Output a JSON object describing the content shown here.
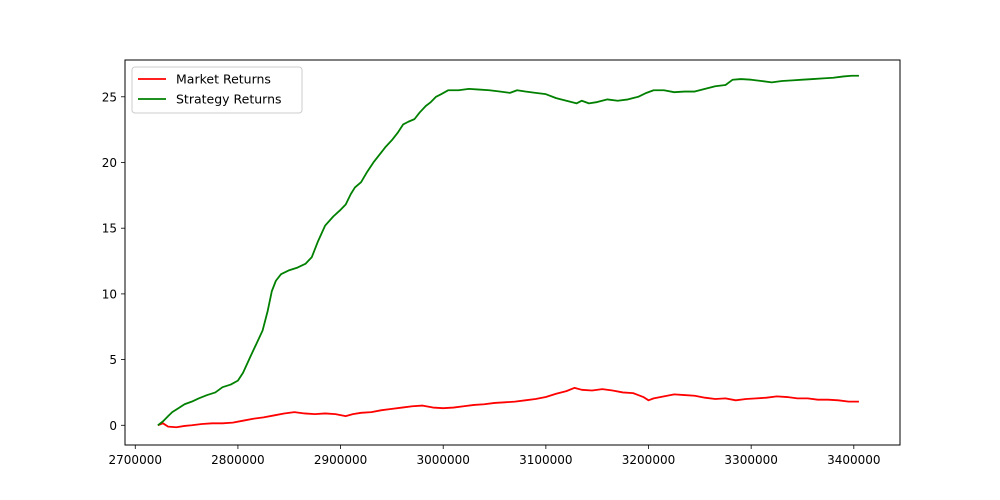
{
  "chart_data": {
    "type": "line",
    "title": "",
    "xlabel": "",
    "ylabel": "",
    "xlim": [
      2690000,
      3445000
    ],
    "ylim": [
      -1.5,
      27.8
    ],
    "xticks": [
      2700000,
      2800000,
      2900000,
      3000000,
      3100000,
      3200000,
      3300000,
      3400000
    ],
    "xtick_labels": [
      "2700000",
      "2800000",
      "2900000",
      "3000000",
      "3100000",
      "3200000",
      "3300000",
      "3400000"
    ],
    "yticks": [
      0,
      5,
      10,
      15,
      20,
      25
    ],
    "ytick_labels": [
      "0",
      "5",
      "10",
      "15",
      "20",
      "25"
    ],
    "grid": false,
    "legend": {
      "position": "upper-left",
      "entries": [
        "Market Returns",
        "Strategy Returns"
      ]
    },
    "series": [
      {
        "name": "Market Returns",
        "color": "#ff0000",
        "points": [
          [
            2722000,
            0.0
          ],
          [
            2727000,
            0.15
          ],
          [
            2732000,
            -0.1
          ],
          [
            2740000,
            -0.15
          ],
          [
            2748000,
            -0.05
          ],
          [
            2755000,
            0.0
          ],
          [
            2765000,
            0.1
          ],
          [
            2775000,
            0.15
          ],
          [
            2785000,
            0.15
          ],
          [
            2795000,
            0.2
          ],
          [
            2805000,
            0.35
          ],
          [
            2815000,
            0.5
          ],
          [
            2825000,
            0.6
          ],
          [
            2835000,
            0.75
          ],
          [
            2845000,
            0.9
          ],
          [
            2855000,
            1.0
          ],
          [
            2865000,
            0.9
          ],
          [
            2875000,
            0.85
          ],
          [
            2885000,
            0.9
          ],
          [
            2895000,
            0.85
          ],
          [
            2905000,
            0.7
          ],
          [
            2912000,
            0.85
          ],
          [
            2920000,
            0.95
          ],
          [
            2930000,
            1.0
          ],
          [
            2940000,
            1.15
          ],
          [
            2950000,
            1.25
          ],
          [
            2960000,
            1.35
          ],
          [
            2970000,
            1.45
          ],
          [
            2980000,
            1.5
          ],
          [
            2990000,
            1.35
          ],
          [
            3000000,
            1.3
          ],
          [
            3010000,
            1.35
          ],
          [
            3020000,
            1.45
          ],
          [
            3030000,
            1.55
          ],
          [
            3040000,
            1.6
          ],
          [
            3050000,
            1.7
          ],
          [
            3060000,
            1.75
          ],
          [
            3070000,
            1.8
          ],
          [
            3080000,
            1.9
          ],
          [
            3090000,
            2.0
          ],
          [
            3100000,
            2.15
          ],
          [
            3110000,
            2.4
          ],
          [
            3120000,
            2.6
          ],
          [
            3128000,
            2.85
          ],
          [
            3135000,
            2.7
          ],
          [
            3145000,
            2.65
          ],
          [
            3155000,
            2.75
          ],
          [
            3165000,
            2.65
          ],
          [
            3175000,
            2.5
          ],
          [
            3185000,
            2.45
          ],
          [
            3195000,
            2.15
          ],
          [
            3200000,
            1.9
          ],
          [
            3205000,
            2.05
          ],
          [
            3215000,
            2.2
          ],
          [
            3225000,
            2.35
          ],
          [
            3235000,
            2.3
          ],
          [
            3245000,
            2.25
          ],
          [
            3255000,
            2.1
          ],
          [
            3265000,
            2.0
          ],
          [
            3275000,
            2.05
          ],
          [
            3285000,
            1.9
          ],
          [
            3295000,
            2.0
          ],
          [
            3305000,
            2.05
          ],
          [
            3315000,
            2.1
          ],
          [
            3325000,
            2.2
          ],
          [
            3335000,
            2.15
          ],
          [
            3345000,
            2.05
          ],
          [
            3355000,
            2.05
          ],
          [
            3365000,
            1.95
          ],
          [
            3375000,
            1.95
          ],
          [
            3385000,
            1.9
          ],
          [
            3395000,
            1.8
          ],
          [
            3405000,
            1.8
          ]
        ]
      },
      {
        "name": "Strategy Returns",
        "color": "#008000",
        "points": [
          [
            2722000,
            0.0
          ],
          [
            2727000,
            0.3
          ],
          [
            2732000,
            0.7
          ],
          [
            2736000,
            1.0
          ],
          [
            2742000,
            1.3
          ],
          [
            2748000,
            1.6
          ],
          [
            2755000,
            1.8
          ],
          [
            2762000,
            2.05
          ],
          [
            2770000,
            2.3
          ],
          [
            2778000,
            2.5
          ],
          [
            2785000,
            2.9
          ],
          [
            2793000,
            3.1
          ],
          [
            2800000,
            3.4
          ],
          [
            2805000,
            4.0
          ],
          [
            2812000,
            5.2
          ],
          [
            2818000,
            6.2
          ],
          [
            2824000,
            7.2
          ],
          [
            2829000,
            8.7
          ],
          [
            2833000,
            10.2
          ],
          [
            2837000,
            11.0
          ],
          [
            2842000,
            11.5
          ],
          [
            2850000,
            11.8
          ],
          [
            2858000,
            12.0
          ],
          [
            2866000,
            12.3
          ],
          [
            2872000,
            12.8
          ],
          [
            2878000,
            14.0
          ],
          [
            2885000,
            15.2
          ],
          [
            2893000,
            15.9
          ],
          [
            2900000,
            16.4
          ],
          [
            2905000,
            16.8
          ],
          [
            2910000,
            17.6
          ],
          [
            2914000,
            18.1
          ],
          [
            2920000,
            18.5
          ],
          [
            2926000,
            19.3
          ],
          [
            2932000,
            20.0
          ],
          [
            2938000,
            20.6
          ],
          [
            2944000,
            21.2
          ],
          [
            2950000,
            21.7
          ],
          [
            2956000,
            22.3
          ],
          [
            2961000,
            22.9
          ],
          [
            2966000,
            23.1
          ],
          [
            2972000,
            23.3
          ],
          [
            2977000,
            23.8
          ],
          [
            2983000,
            24.3
          ],
          [
            2988000,
            24.6
          ],
          [
            2993000,
            25.0
          ],
          [
            2998000,
            25.2
          ],
          [
            3005000,
            25.5
          ],
          [
            3015000,
            25.5
          ],
          [
            3025000,
            25.6
          ],
          [
            3035000,
            25.55
          ],
          [
            3045000,
            25.5
          ],
          [
            3055000,
            25.4
          ],
          [
            3065000,
            25.3
          ],
          [
            3072000,
            25.5
          ],
          [
            3080000,
            25.4
          ],
          [
            3090000,
            25.3
          ],
          [
            3100000,
            25.2
          ],
          [
            3110000,
            24.9
          ],
          [
            3120000,
            24.7
          ],
          [
            3130000,
            24.5
          ],
          [
            3135000,
            24.7
          ],
          [
            3142000,
            24.5
          ],
          [
            3150000,
            24.6
          ],
          [
            3160000,
            24.8
          ],
          [
            3170000,
            24.7
          ],
          [
            3180000,
            24.8
          ],
          [
            3190000,
            25.0
          ],
          [
            3198000,
            25.3
          ],
          [
            3205000,
            25.5
          ],
          [
            3215000,
            25.5
          ],
          [
            3225000,
            25.35
          ],
          [
            3235000,
            25.4
          ],
          [
            3245000,
            25.4
          ],
          [
            3255000,
            25.6
          ],
          [
            3265000,
            25.8
          ],
          [
            3275000,
            25.9
          ],
          [
            3282000,
            26.3
          ],
          [
            3290000,
            26.35
          ],
          [
            3300000,
            26.3
          ],
          [
            3310000,
            26.2
          ],
          [
            3320000,
            26.1
          ],
          [
            3330000,
            26.2
          ],
          [
            3340000,
            26.25
          ],
          [
            3350000,
            26.3
          ],
          [
            3360000,
            26.35
          ],
          [
            3370000,
            26.4
          ],
          [
            3380000,
            26.45
          ],
          [
            3390000,
            26.55
          ],
          [
            3398000,
            26.6
          ],
          [
            3405000,
            26.6
          ]
        ]
      }
    ]
  }
}
